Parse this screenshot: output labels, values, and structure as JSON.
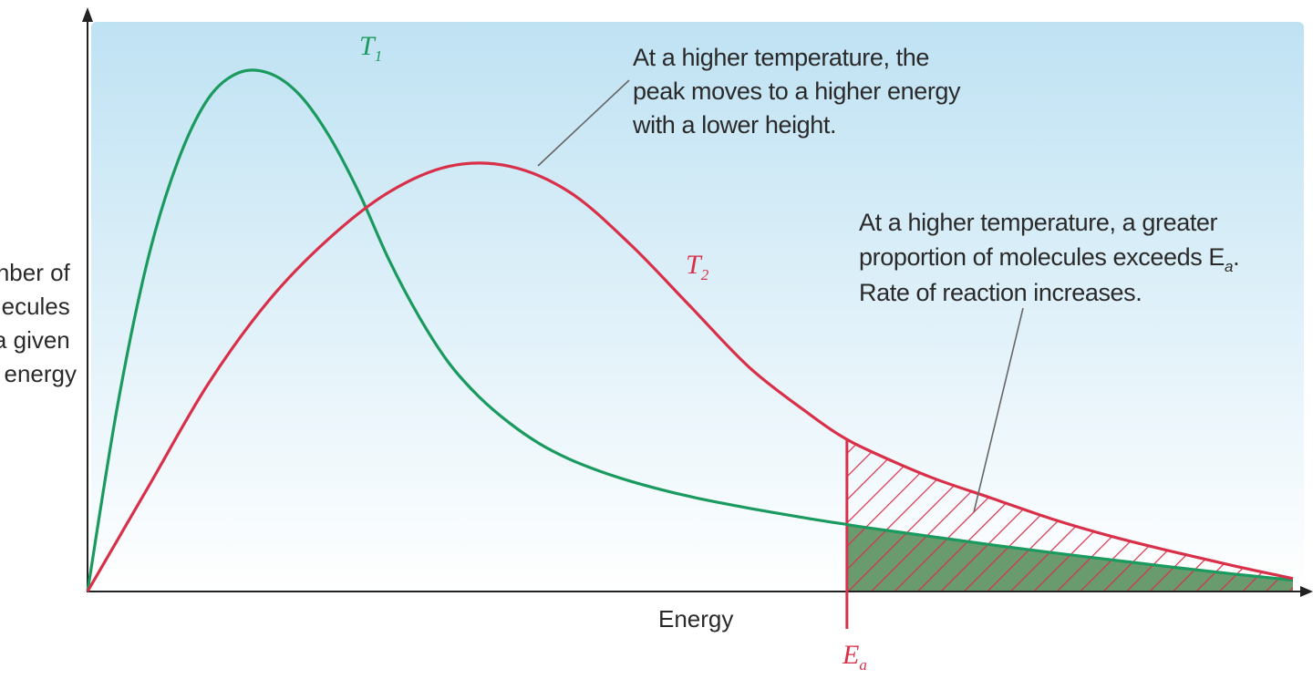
{
  "chart_data": {
    "type": "line",
    "title": "",
    "xlabel": "Energy",
    "ylabel": "Number of molecules with a given energy",
    "ylabel_visible_lines": [
      "nber of",
      "lecules",
      "a given",
      "energy"
    ],
    "xlim": [
      0,
      10
    ],
    "ylim": [
      0,
      1
    ],
    "grid": false,
    "series": [
      {
        "name": "T1",
        "label_main": "T",
        "label_sub": "1",
        "color": "#1a9a5e",
        "x": [
          0,
          0.25,
          0.5,
          0.75,
          1.0,
          1.25,
          1.5,
          1.75,
          2.0,
          2.25,
          2.5,
          2.75,
          3.0,
          3.25,
          3.5,
          3.75,
          4.0,
          4.25,
          4.5,
          4.75,
          5.0,
          5.25,
          5.5,
          5.75,
          6.0,
          6.25,
          6.5,
          7.0,
          7.5,
          8.0,
          8.5,
          9.0,
          9.5,
          10.0
        ],
        "y": [
          0,
          0.36,
          0.64,
          0.83,
          0.95,
          1.0,
          1.0,
          0.96,
          0.88,
          0.77,
          0.64,
          0.53,
          0.44,
          0.375,
          0.325,
          0.285,
          0.255,
          0.232,
          0.213,
          0.197,
          0.183,
          0.171,
          0.16,
          0.15,
          0.14,
          0.131,
          0.122,
          0.106,
          0.09,
          0.075,
          0.061,
          0.047,
          0.034,
          0.022
        ]
      },
      {
        "name": "T2",
        "label_main": "T",
        "label_sub": "2",
        "color": "#d9304a",
        "x": [
          0,
          0.5,
          1.0,
          1.5,
          2.0,
          2.5,
          3.0,
          3.5,
          4.0,
          4.5,
          5.0,
          5.5,
          6.0,
          6.25,
          6.5,
          7.0,
          7.5,
          8.0,
          8.5,
          9.0,
          9.5,
          10.0
        ],
        "y": [
          0,
          0.2,
          0.4,
          0.56,
          0.68,
          0.77,
          0.82,
          0.82,
          0.77,
          0.67,
          0.55,
          0.43,
          0.34,
          0.3,
          0.27,
          0.22,
          0.18,
          0.14,
          0.106,
          0.077,
          0.05,
          0.025
        ]
      }
    ],
    "activation_energy": {
      "label_main": "E",
      "label_sub": "a",
      "x": 6.3
    },
    "annotations": [
      {
        "id": "peak-note",
        "lines": [
          "At a higher temperature, the",
          "peak moves to a higher energy",
          "with a lower height."
        ]
      },
      {
        "id": "proportion-note",
        "lines": [
          "At a higher temperature, a greater",
          "proportion of molecules exceeds E",
          "Rate of reaction increases."
        ],
        "inline_sub": "a",
        "trailing": "."
      }
    ],
    "background_gradient": [
      "#bfe2f3",
      "#ffffff"
    ]
  }
}
